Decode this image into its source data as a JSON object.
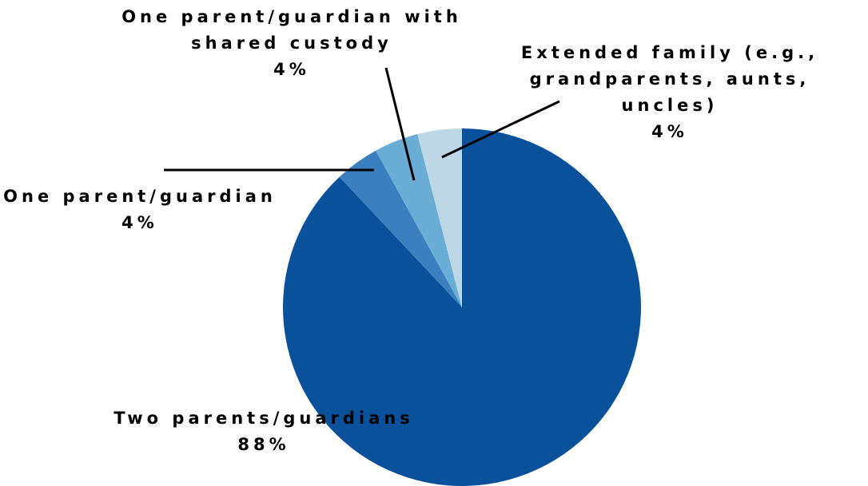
{
  "chart_data": {
    "type": "pie",
    "categories": [
      "Two parents/guardians",
      "One parent/guardian",
      "One parent/guardian with shared custody",
      "Extended family (e.g., grandparents, aunts, uncles)"
    ],
    "values": [
      88,
      4,
      4,
      4
    ],
    "value_labels": [
      "88%",
      "4%",
      "4%",
      "4%"
    ],
    "colors": [
      "#0a519c",
      "#3a80be",
      "#6aaed6",
      "#bdd7e7"
    ]
  }
}
